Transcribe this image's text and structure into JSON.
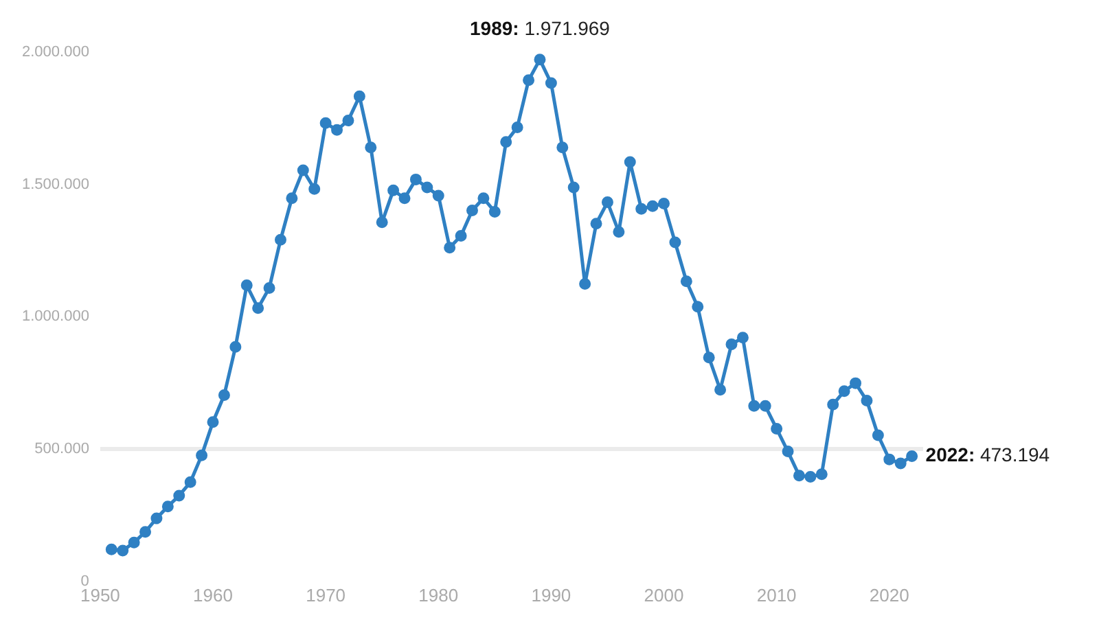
{
  "chart_data": {
    "type": "line",
    "x": [
      1951,
      1952,
      1953,
      1954,
      1955,
      1956,
      1957,
      1958,
      1959,
      1960,
      1961,
      1962,
      1963,
      1964,
      1965,
      1966,
      1967,
      1968,
      1969,
      1970,
      1971,
      1972,
      1973,
      1974,
      1975,
      1976,
      1977,
      1978,
      1979,
      1980,
      1981,
      1982,
      1983,
      1984,
      1985,
      1986,
      1987,
      1988,
      1989,
      1990,
      1991,
      1992,
      1993,
      1994,
      1995,
      1996,
      1997,
      1998,
      1999,
      2000,
      2001,
      2002,
      2003,
      2004,
      2005,
      2006,
      2007,
      2008,
      2009,
      2010,
      2011,
      2012,
      2013,
      2014,
      2015,
      2016,
      2017,
      2018,
      2019,
      2020,
      2021,
      2022
    ],
    "series": [
      {
        "color": "#2f80c3",
        "values": [
          121000,
          116000,
          147000,
          187000,
          238000,
          283000,
          324000,
          375000,
          476000,
          602000,
          704000,
          886000,
          1119000,
          1033000,
          1109000,
          1291000,
          1448000,
          1554000,
          1483000,
          1732000,
          1706000,
          1742000,
          1833000,
          1640000,
          1357000,
          1478000,
          1448000,
          1519000,
          1489000,
          1458000,
          1261000,
          1306000,
          1402000,
          1448000,
          1397000,
          1661000,
          1716000,
          1894000,
          1971969,
          1883000,
          1640000,
          1489000,
          1124000,
          1352000,
          1433000,
          1321000,
          1585000,
          1408000,
          1418000,
          1428000,
          1281000,
          1134000,
          1038000,
          846000,
          724000,
          896000,
          921000,
          663000,
          663000,
          577000,
          491000,
          400000,
          395000,
          405000,
          668000,
          719000,
          749000,
          683000,
          552000,
          461000,
          446000,
          473194
        ]
      }
    ],
    "xlim": [
      1950,
      2023
    ],
    "xticks": [
      1950,
      1960,
      1970,
      1980,
      1990,
      2000,
      2010,
      2020
    ],
    "ylim": [
      0,
      2000000
    ],
    "yticks": [
      0,
      {
        "value": 500000,
        "label": "500.000"
      },
      {
        "value": 1000000,
        "label": "1.000.000"
      },
      {
        "value": 1500000,
        "label": "1.500.000"
      },
      {
        "value": 2000000,
        "label": "2.000.000"
      }
    ],
    "ref_lines": [
      {
        "axis": "y",
        "value": 500000,
        "color": "#ebebeb"
      }
    ],
    "annotations": [
      {
        "text": "1989: 1.971.969",
        "x": 1989,
        "y": 1971969
      },
      {
        "text": "2022: 473.194",
        "x": 2022,
        "y": 473194
      }
    ],
    "marker": "circle",
    "line_style": "solid",
    "grid": false,
    "legend": false
  }
}
